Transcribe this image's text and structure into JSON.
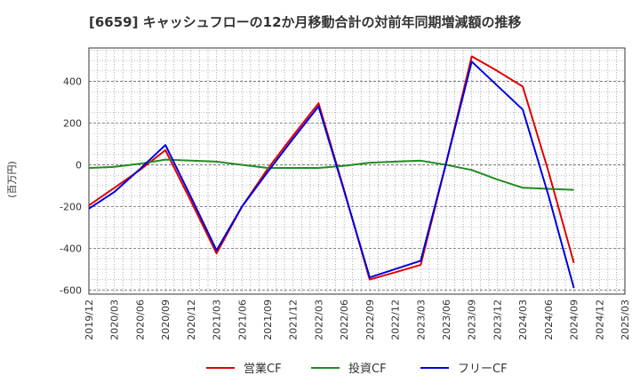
{
  "chart_data": {
    "type": "line",
    "title": "[6659]  キャッシュフローの12か月移動合計の対前年同期増減額の推移",
    "ylabel": "(百万円)",
    "xlabel": "",
    "ylim": [
      -620,
      560
    ],
    "yticks": [
      -600,
      -400,
      -200,
      0,
      200,
      400
    ],
    "categories": [
      "2019/12",
      "2020/03",
      "2020/06",
      "2020/09",
      "2020/12",
      "2021/03",
      "2021/06",
      "2021/09",
      "2021/12",
      "2022/03",
      "2022/06",
      "2022/09",
      "2022/12",
      "2023/03",
      "2023/06",
      "2023/09",
      "2023/12",
      "2024/03",
      "2024/06",
      "2024/09",
      "2024/12",
      "2025/03"
    ],
    "grid": true,
    "legend_position": "bottom",
    "series": [
      {
        "name": "営業CF",
        "color": "#e00000",
        "values": [
          -195,
          -110,
          -25,
          70,
          -175,
          -425,
          -200,
          -20,
          140,
          295,
          -120,
          -550,
          -515,
          -480,
          10,
          520,
          450,
          375,
          -30,
          -470,
          null,
          null
        ]
      },
      {
        "name": "投資CF",
        "color": "#228b22",
        "values": [
          -15,
          -10,
          5,
          25,
          20,
          15,
          0,
          -15,
          -15,
          -15,
          -5,
          10,
          15,
          20,
          0,
          -25,
          -70,
          -110,
          -115,
          -120,
          null,
          null
        ]
      },
      {
        "name": "フリーCF",
        "color": "#0000dd",
        "values": [
          -210,
          -130,
          -20,
          95,
          -155,
          -410,
          -200,
          -35,
          125,
          280,
          -125,
          -540,
          -500,
          -460,
          10,
          495,
          380,
          265,
          -145,
          -590,
          null,
          null
        ]
      }
    ]
  }
}
